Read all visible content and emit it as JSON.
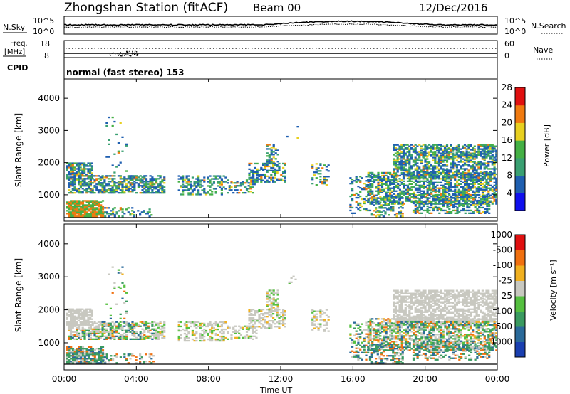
{
  "header": {
    "station": "Zhongshan Station (fitACF)",
    "beam": "Beam 00",
    "date": "12/Dec/2016"
  },
  "top_panels": {
    "nsky_label": "N.Sky",
    "nsky_ticks": [
      "10^5",
      "10^0"
    ],
    "nsearch_label": "N.Search",
    "nsearch_ticks": [
      "10^5",
      "10^0"
    ],
    "freq_label_line1": "Freq.",
    "freq_label_line2": "[MHz]",
    "freq_ticks": [
      "18",
      "8"
    ],
    "nave_label": "Nave",
    "nave_ticks": [
      "60",
      "0"
    ],
    "cpid_label": "CPID",
    "cpid_text": "normal (fast stereo) 153"
  },
  "chart_data": [
    {
      "type": "heatmap",
      "name": "power",
      "ylabel": "Slant Range [km]",
      "xlabel": "Time UT",
      "y_ticks": [
        "1000",
        "2000",
        "3000",
        "4000"
      ],
      "x_ticks": [
        "00:00",
        "04:00",
        "08:00",
        "12:00",
        "16:00",
        "20:00",
        "00:00"
      ],
      "colorbar_label": "Power [dB]",
      "colorbar_ticks": [
        "4",
        "8",
        "12",
        "16",
        "20",
        "24",
        "28"
      ],
      "colorbar_colors": [
        "#1010ee",
        "#1f5fb0",
        "#3aa072",
        "#44b045",
        "#e8d020",
        "#f07a10",
        "#e01010"
      ],
      "xlim_hours": [
        0,
        24
      ],
      "ylim_km": [
        180,
        4600
      ]
    },
    {
      "type": "heatmap",
      "name": "velocity",
      "ylabel": "Slant Range [km]",
      "xlabel": "Time UT",
      "y_ticks": [
        "1000",
        "2000",
        "3000",
        "4000"
      ],
      "x_ticks": [
        "00:00",
        "04:00",
        "08:00",
        "12:00",
        "16:00",
        "20:00",
        "00:00"
      ],
      "colorbar_label": "Velocity [m s⁻¹]",
      "colorbar_ticks": [
        "1000",
        "500",
        "100",
        "25",
        "-25",
        "-100",
        "-500",
        "-1000"
      ],
      "colorbar_colors": [
        "#1a3fb0",
        "#2a6a9a",
        "#3a9a60",
        "#55c040",
        "#c8c8c0",
        "#f0b020",
        "#f07010",
        "#e01010"
      ],
      "xlim_hours": [
        0,
        24
      ],
      "ylim_km": [
        180,
        4600
      ]
    }
  ],
  "time_axis_label": "Time UT"
}
